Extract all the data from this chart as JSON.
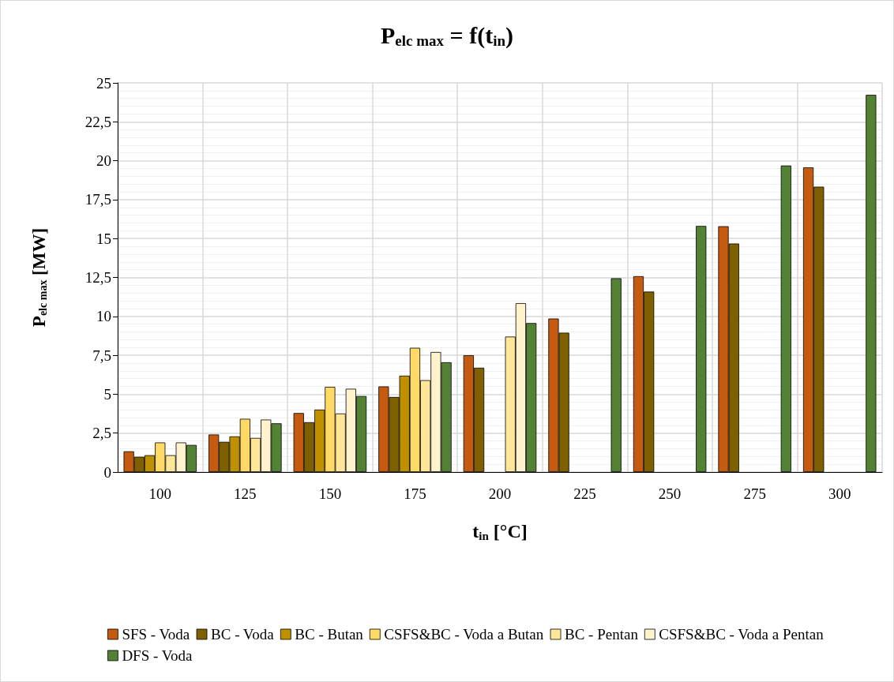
{
  "chart_data": {
    "type": "bar",
    "title": "P$_{elc max}$ = f(t$_{in}$)",
    "xlabel": "t$_{in}$ [°C]",
    "ylabel": "P$_{elc max}$ [MW]",
    "categories": [
      "100",
      "125",
      "150",
      "175",
      "200",
      "225",
      "250",
      "275",
      "300"
    ],
    "series": [
      {
        "name": "SFS - Voda",
        "color": "#c55a11",
        "values": [
          1.33,
          2.41,
          3.79,
          5.5,
          7.5,
          9.86,
          12.58,
          15.79,
          19.57
        ]
      },
      {
        "name": "BC - Voda",
        "color": "#7f6000",
        "values": [
          0.98,
          1.94,
          3.2,
          4.82,
          6.7,
          8.95,
          11.59,
          14.68,
          18.33
        ]
      },
      {
        "name": "BC - Butan",
        "color": "#bf9000",
        "values": [
          1.08,
          2.29,
          4.01,
          6.19,
          null,
          null,
          null,
          null,
          null
        ]
      },
      {
        "name": "CSFS&BC - Voda a Butan",
        "color": "#ffd966",
        "values": [
          1.9,
          3.42,
          5.47,
          7.98,
          null,
          null,
          null,
          null,
          null
        ]
      },
      {
        "name": "BC - Pentan",
        "color": "#ffe699",
        "values": [
          1.08,
          2.19,
          3.76,
          5.9,
          8.7,
          null,
          null,
          null,
          null
        ]
      },
      {
        "name": "CSFS&BC - Voda a Pentan",
        "color": "#fff2cc",
        "values": [
          1.9,
          3.37,
          5.35,
          7.71,
          10.85,
          null,
          null,
          null,
          null
        ]
      },
      {
        "name": "DFS - Voda",
        "color": "#548235",
        "values": [
          1.74,
          3.13,
          4.88,
          7.05,
          9.57,
          12.45,
          15.81,
          19.69,
          24.23
        ]
      }
    ],
    "ylim": [
      0,
      25
    ],
    "yticks": [
      0,
      {
        "value": 2.5,
        "label": "2,5"
      },
      5,
      {
        "value": 7.5,
        "label": "7,5"
      },
      10,
      {
        "value": 12.5,
        "label": "12,5"
      },
      15,
      {
        "value": 17.5,
        "label": "17,5"
      },
      20,
      {
        "value": 22.5,
        "label": "22,5"
      },
      25
    ],
    "grid": true,
    "legend": "bottom"
  }
}
